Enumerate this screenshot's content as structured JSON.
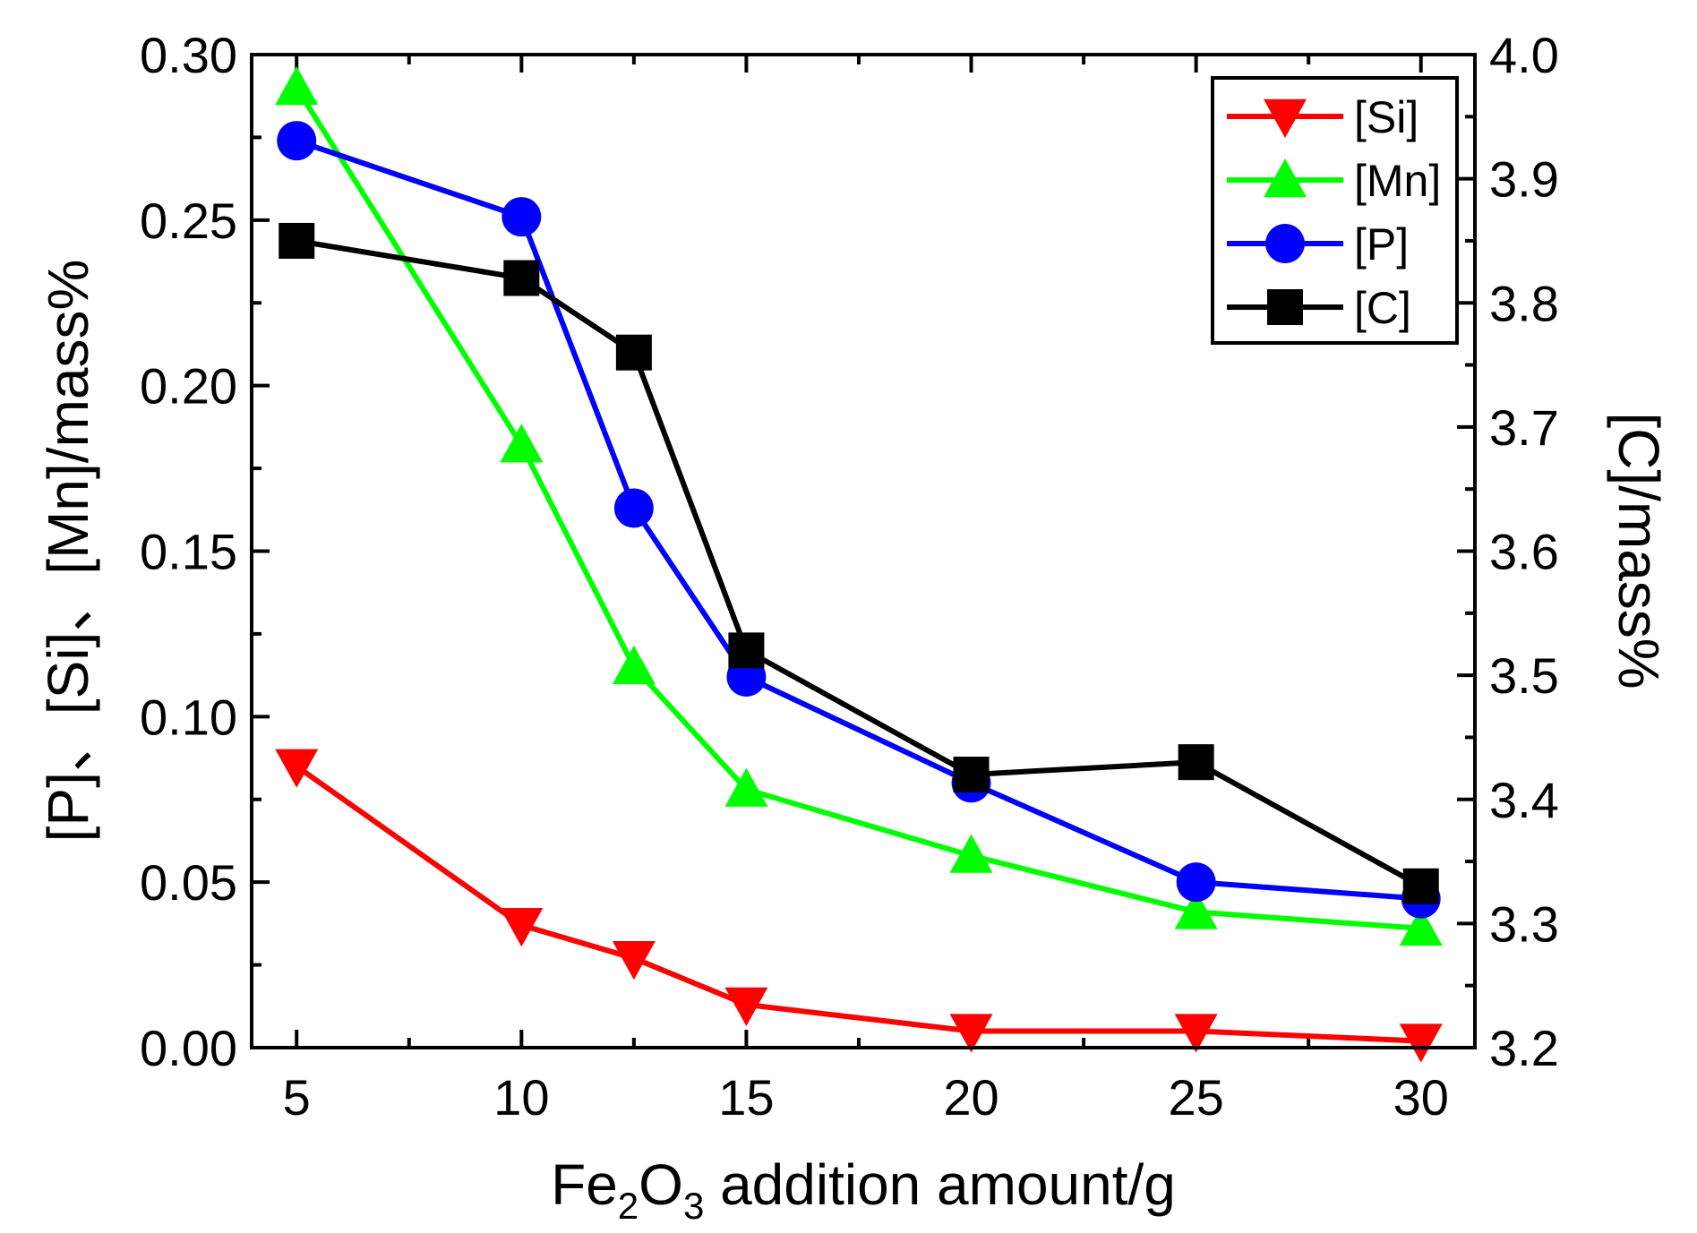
{
  "chart_data": {
    "type": "line",
    "x": [
      5,
      10,
      12.5,
      15,
      20,
      25,
      30
    ],
    "xlabel": {
      "pre": "Fe",
      "sub1": "2",
      "mid": "O",
      "sub2": "3",
      "post": " addition amount/g"
    },
    "ylabel_left": "[P]、[Si]、[Mn]/mass%",
    "ylabel_right": "[C]/mass%",
    "xlim": [
      4,
      31.2
    ],
    "ylim_left": [
      0,
      0.3
    ],
    "ylim_right": [
      3.2,
      4.0
    ],
    "x_ticks": [
      5,
      10,
      15,
      20,
      25,
      30
    ],
    "x_tick_labels": [
      "5",
      "10",
      "15",
      "20",
      "25",
      "30"
    ],
    "y_left_ticks": [
      0,
      0.05,
      0.1,
      0.15,
      0.2,
      0.25,
      0.3
    ],
    "y_left_tick_labels": [
      "0.00",
      "0.05",
      "0.10",
      "0.15",
      "0.20",
      "0.25",
      "0.30"
    ],
    "y_right_ticks": [
      3.2,
      3.3,
      3.4,
      3.5,
      3.6,
      3.7,
      3.8,
      3.9,
      4.0
    ],
    "y_right_tick_labels": [
      "3.2",
      "3.3",
      "3.4",
      "3.5",
      "3.6",
      "3.7",
      "3.8",
      "3.9",
      "4.0"
    ],
    "legend_position": "top-right",
    "series": [
      {
        "name": "[Si]",
        "axis": "left",
        "color": "#ff0000",
        "marker": "triangle-down",
        "values": [
          0.085,
          0.037,
          0.027,
          0.013,
          0.005,
          0.005,
          0.002
        ]
      },
      {
        "name": "[Mn]",
        "axis": "left",
        "color": "#00ff00",
        "marker": "triangle-up",
        "values": [
          0.29,
          0.182,
          0.115,
          0.078,
          0.058,
          0.041,
          0.036
        ]
      },
      {
        "name": "[P]",
        "axis": "left",
        "color": "#0000ff",
        "marker": "circle",
        "values": [
          0.274,
          0.251,
          0.163,
          0.112,
          0.08,
          0.05,
          0.045
        ]
      },
      {
        "name": "[C]",
        "axis": "right",
        "color": "#000000",
        "marker": "square",
        "values": [
          3.85,
          3.82,
          3.76,
          3.52,
          3.42,
          3.43,
          3.33
        ]
      }
    ]
  }
}
